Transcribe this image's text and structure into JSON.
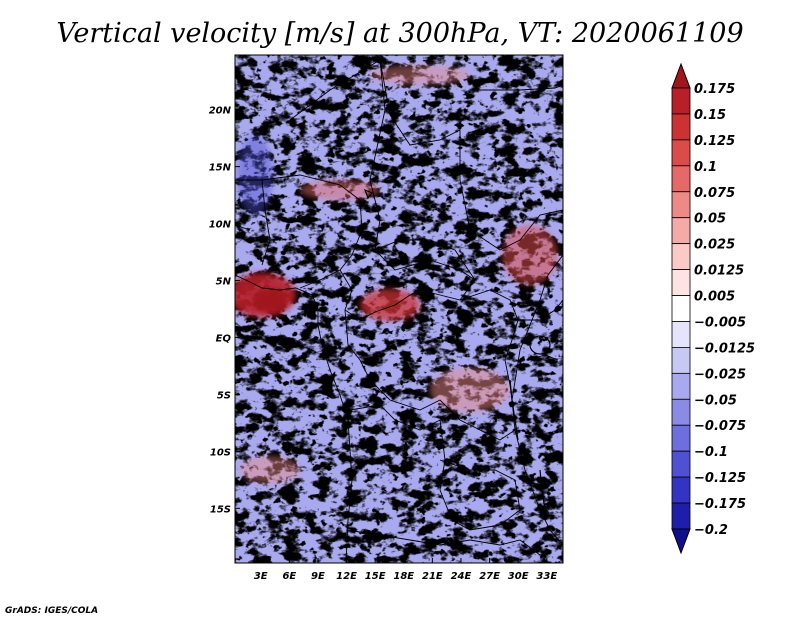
{
  "chart_data": {
    "type": "heatmap",
    "title": "Vertical velocity [m/s] at 300hPa, VT: 2020061109",
    "variable": "Vertical velocity",
    "units": "m/s",
    "level": "300hPa",
    "valid_time": "2020061109",
    "x_ticks": [
      "3E",
      "6E",
      "9E",
      "12E",
      "15E",
      "18E",
      "21E",
      "24E",
      "27E",
      "30E",
      "33E"
    ],
    "x_tick_values": [
      3,
      6,
      9,
      12,
      15,
      18,
      21,
      24,
      27,
      30,
      33
    ],
    "y_ticks": [
      "20N",
      "15N",
      "10N",
      "5N",
      "EQ",
      "5S",
      "10S",
      "15S"
    ],
    "y_tick_values": [
      20,
      15,
      10,
      5,
      0,
      -5,
      -10,
      -15
    ],
    "xlim": [
      0.3,
      34.7
    ],
    "ylim": [
      -19.8,
      24.8
    ],
    "colorbar": {
      "levels": [
        "0.175",
        "0.15",
        "0.125",
        "0.1",
        "0.075",
        "0.05",
        "0.025",
        "0.0125",
        "0.005",
        "−0.005",
        "−0.0125",
        "−0.025",
        "−0.05",
        "−0.075",
        "−0.1",
        "−0.125",
        "−0.175",
        "−0.2"
      ],
      "colors": [
        "#a0151b",
        "#b82027",
        "#cc3232",
        "#db4b49",
        "#e56966",
        "#ee8a86",
        "#f4aaa6",
        "#f9cac7",
        "#fde3e1",
        "#ffffff",
        "#e4e4fb",
        "#c8c8f5",
        "#a9a9ef",
        "#8b8be6",
        "#6e6ede",
        "#5050d2",
        "#3434c2",
        "#1e1eaa",
        "#10108a"
      ]
    },
    "features": {
      "strong_ascent": "Gulf of Guinea coast near 2E–7E, 3N–6N",
      "ascent_clusters": "central Africa around 14E–19E, 2N–5N; Ethiopian highlands 30E–34E, 5N–10N",
      "descent": "broad weak negative values over much of the domain"
    }
  },
  "footer": {
    "credit": "GrADS: IGES/COLA"
  }
}
